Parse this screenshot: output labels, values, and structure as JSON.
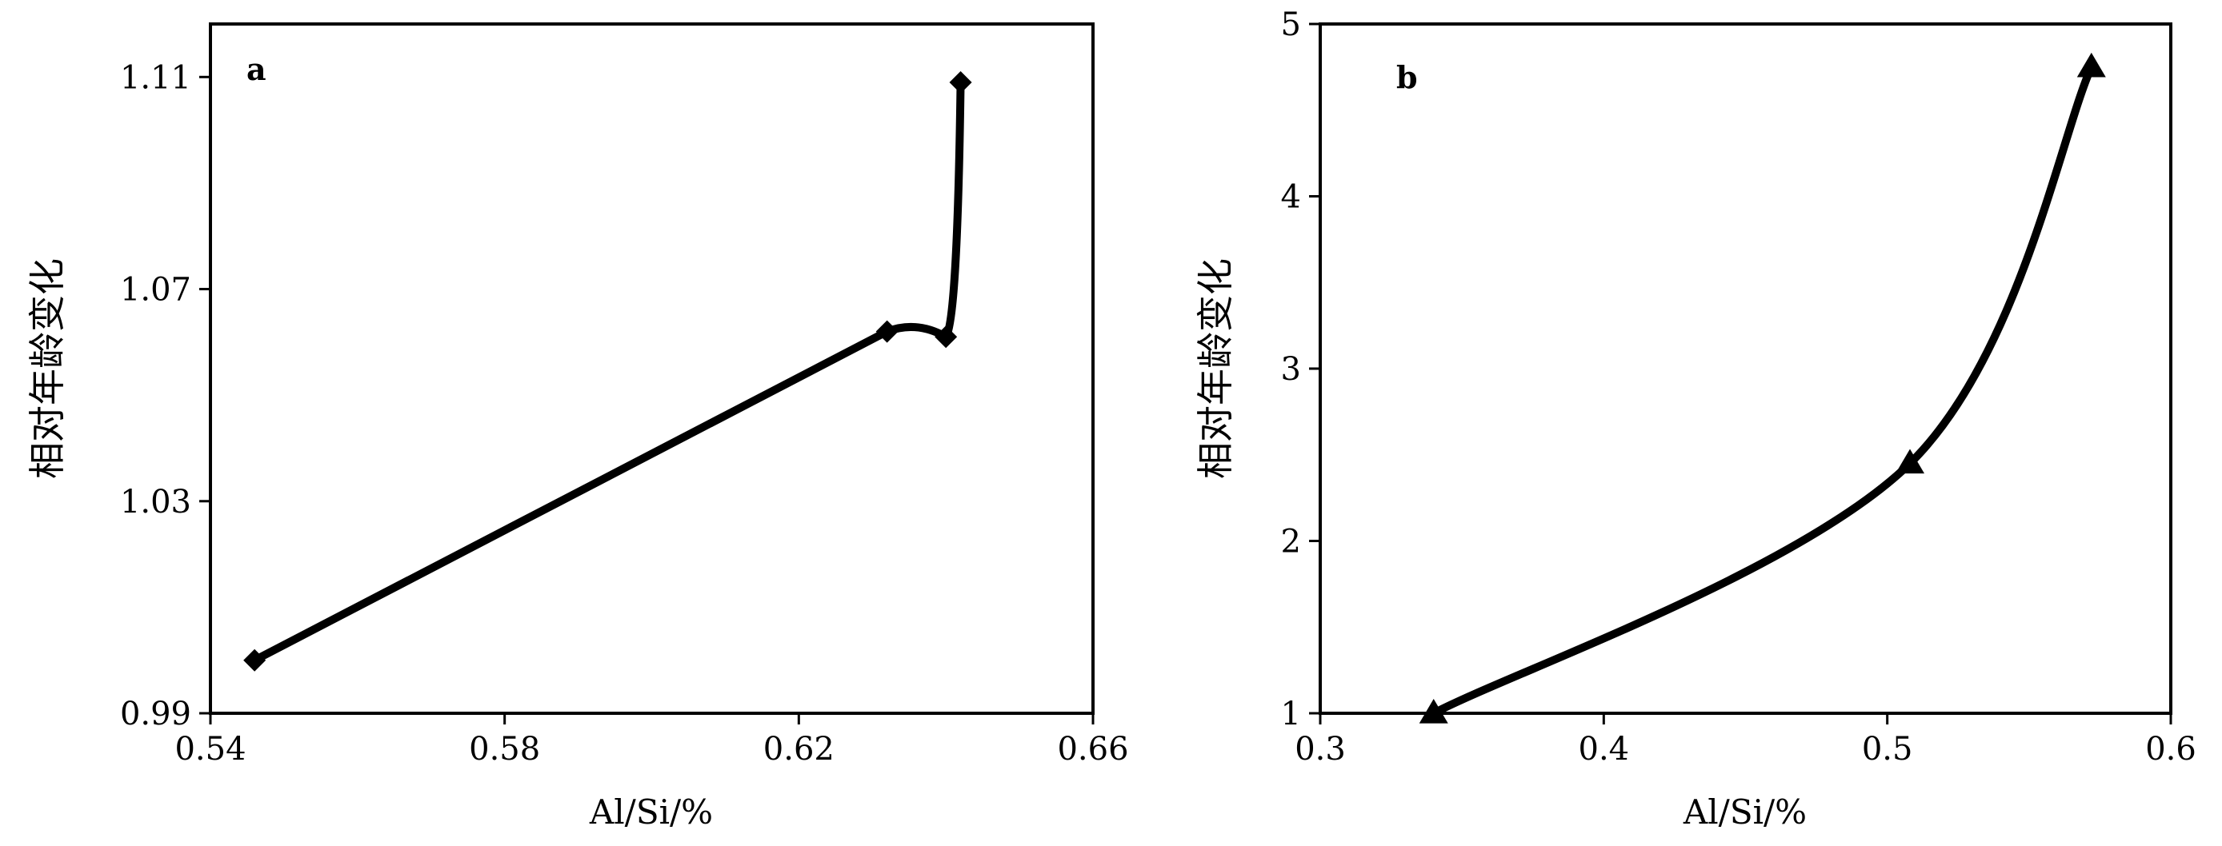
{
  "chart_data": [
    {
      "type": "line",
      "panel_label": "a",
      "xlabel": "Al/Si/%",
      "ylabel": "相对年龄变化",
      "xlim": [
        0.54,
        0.66
      ],
      "ylim": [
        0.99,
        1.12
      ],
      "xticks": [
        "0.54",
        "0.58",
        "0.62",
        "0.66"
      ],
      "yticks": [
        "0.99",
        "1.03",
        "1.07",
        "1.11"
      ],
      "marker": "diamond",
      "grid": false,
      "series": [
        {
          "x": [
            0.546,
            0.632,
            0.64,
            0.642
          ],
          "y": [
            1.0,
            1.062,
            1.061,
            1.109
          ]
        }
      ]
    },
    {
      "type": "line",
      "panel_label": "b",
      "xlabel": "Al/Si/%",
      "ylabel": "相对年龄变化",
      "xlim": [
        0.3,
        0.6
      ],
      "ylim": [
        1,
        5
      ],
      "xticks": [
        "0.3",
        "0.4",
        "0.5",
        "0.6"
      ],
      "yticks": [
        "1",
        "2",
        "3",
        "4",
        "5"
      ],
      "marker": "triangle",
      "grid": false,
      "series": [
        {
          "x": [
            0.34,
            0.508,
            0.572
          ],
          "y": [
            1.0,
            2.45,
            4.75
          ]
        }
      ]
    }
  ]
}
